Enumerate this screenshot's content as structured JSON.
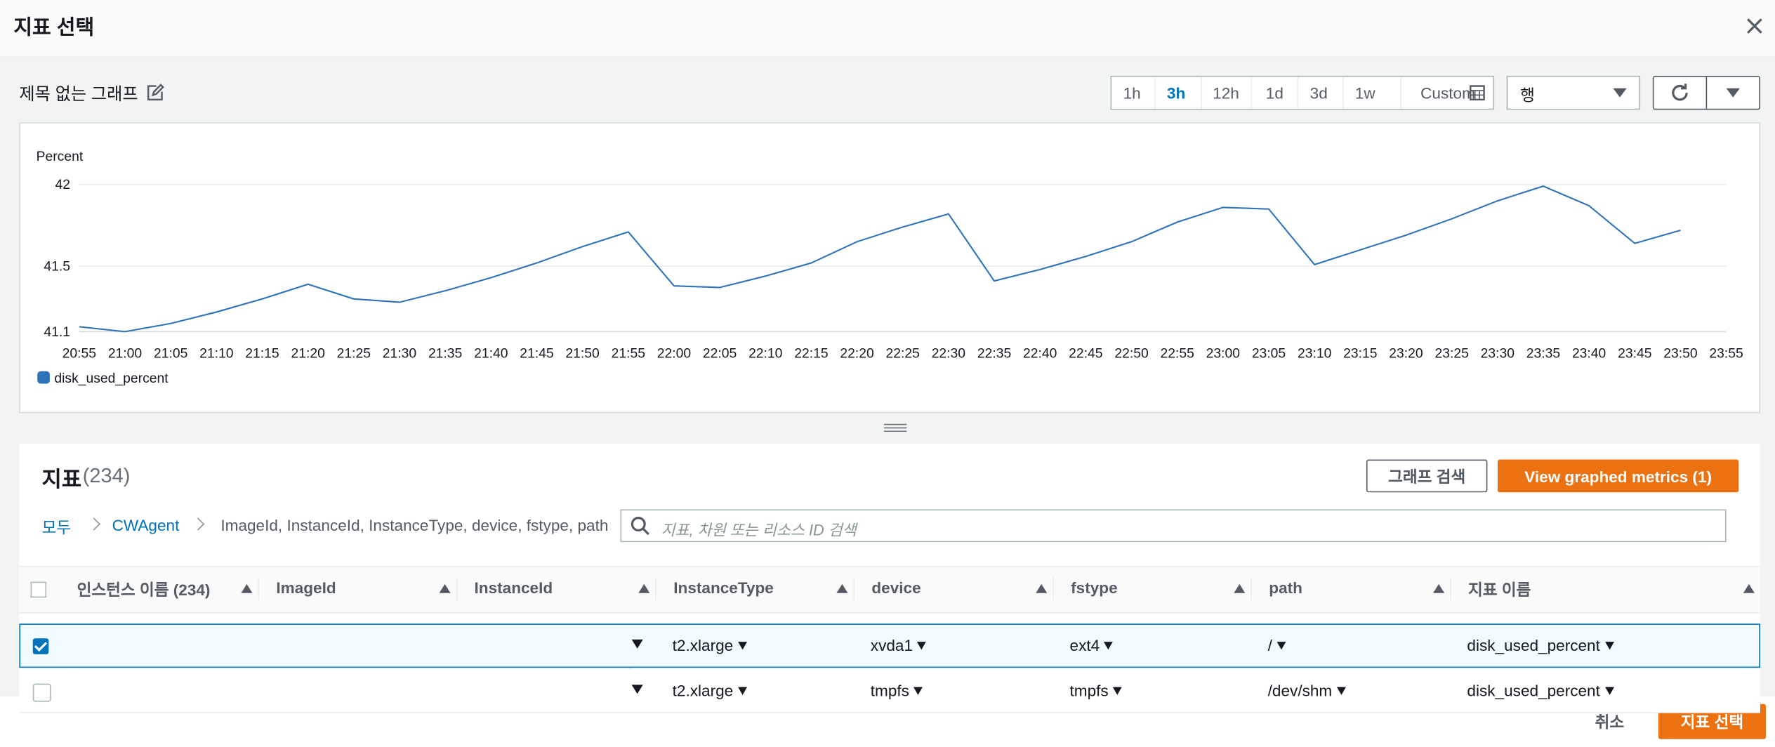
{
  "header": {
    "title": "지표 선택"
  },
  "graph": {
    "title": "제목 없는 그래프",
    "time_ranges": [
      "1h",
      "3h",
      "12h",
      "1d",
      "3d",
      "1w",
      "Custom"
    ],
    "selected_range": 1,
    "view": "행"
  },
  "chart_data": {
    "type": "line",
    "y_label": "Percent",
    "categories": [
      "20:55",
      "21:00",
      "21:05",
      "21:10",
      "21:15",
      "21:20",
      "21:25",
      "21:30",
      "21:35",
      "21:40",
      "21:45",
      "21:50",
      "21:55",
      "22:00",
      "22:05",
      "22:10",
      "22:15",
      "22:20",
      "22:25",
      "22:30",
      "22:35",
      "22:40",
      "22:45",
      "22:50",
      "22:55",
      "23:00",
      "23:05",
      "23:10",
      "23:15",
      "23:20",
      "23:25",
      "23:30",
      "23:35",
      "23:40",
      "23:45",
      "23:50",
      "23:55"
    ],
    "series": [
      {
        "name": "disk_used_percent",
        "color": "#2e73b8",
        "values": [
          41.13,
          41.1,
          41.15,
          41.22,
          41.3,
          41.39,
          41.3,
          41.28,
          41.35,
          41.43,
          41.52,
          41.62,
          41.71,
          41.38,
          41.37,
          41.44,
          41.52,
          41.65,
          41.74,
          41.82,
          41.41,
          41.48,
          41.56,
          41.65,
          41.77,
          41.86,
          41.85,
          41.51,
          41.6,
          41.69,
          41.79,
          41.9,
          41.99,
          41.87,
          41.64,
          41.72,
          null
        ]
      }
    ],
    "ylim": [
      41.1,
      42
    ],
    "yticks": [
      41.1,
      41.5,
      42
    ],
    "grid": true
  },
  "metrics": {
    "title": "지표",
    "count": "(234)",
    "search_graph": "그래프 검색",
    "view_graphed": "View graphed metrics (1)",
    "breadcrumb": [
      "모두",
      "CWAgent",
      "ImageId, InstanceId, InstanceType, device, fstype, path"
    ],
    "search_placeholder": "지표, 차원 또는 리소스 ID 검색"
  },
  "table": {
    "headers": [
      "인스턴스 이름 (234)",
      "ImageId",
      "InstanceId",
      "InstanceType",
      "device",
      "fstype",
      "path",
      "지표 이름"
    ],
    "rows": [
      {
        "checked": true,
        "cells": {
          "3": "t2.xlarge",
          "4": "xvda1",
          "5": "ext4",
          "6": "/",
          "7": "disk_used_percent"
        }
      },
      {
        "checked": false,
        "cells": {
          "3": "t2.xlarge",
          "4": "tmpfs",
          "5": "tmpfs",
          "6": "/dev/shm",
          "7": "disk_used_percent"
        }
      }
    ]
  },
  "footer": {
    "cancel": "취소",
    "submit": "지표 선택"
  }
}
